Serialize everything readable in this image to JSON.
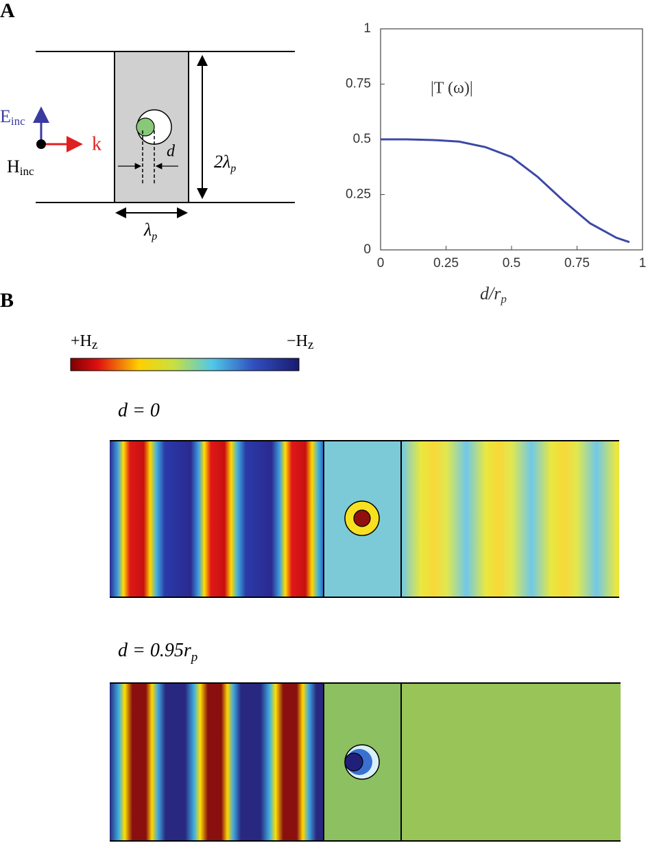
{
  "panels": {
    "a": "A",
    "b": "B"
  },
  "diagram": {
    "e_label": "E",
    "e_sub": "inc",
    "h_label": "H",
    "h_sub": "inc",
    "k_label": "k",
    "d_label": "d",
    "height_label": "2λ",
    "height_sub": "p",
    "width_label": "λ",
    "width_sub": "p"
  },
  "chart_data": {
    "type": "line",
    "annotation": "|T (ω)|",
    "xlabel": "d/r",
    "xlabel_sub": "p",
    "x": [
      0,
      0.1,
      0.2,
      0.3,
      0.4,
      0.5,
      0.6,
      0.7,
      0.8,
      0.9,
      0.95
    ],
    "series": [
      {
        "color": "#3b48a6",
        "values": [
          0.5,
          0.5,
          0.497,
          0.49,
          0.465,
          0.42,
          0.33,
          0.22,
          0.12,
          0.055,
          0.035
        ]
      }
    ],
    "xlim": [
      0,
      1
    ],
    "xticks": [
      0,
      0.25,
      0.5,
      0.75,
      1
    ],
    "ylim": [
      0,
      1
    ],
    "yticks": [
      0,
      0.25,
      0.5,
      0.75,
      1
    ]
  },
  "colorbar": {
    "plus_label": "+H",
    "plus_sub": "z",
    "minus_label": "−H",
    "minus_sub": "z"
  },
  "fields": [
    {
      "label": "d = 0"
    },
    {
      "label": "d = 0.95r",
      "sub": "p"
    }
  ]
}
